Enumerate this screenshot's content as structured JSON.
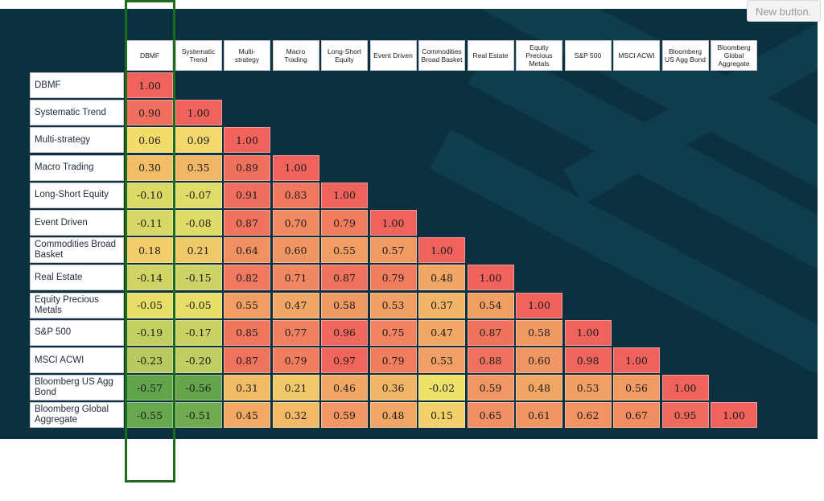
{
  "new_button_label": "New button.",
  "chart_data": {
    "type": "heatmap",
    "columns": [
      "DBMF",
      "Systematic\nTrend",
      "Multi-\nstrategy",
      "Macro\nTrading",
      "Long-Short\nEquity",
      "Event Driven",
      "Commodities\nBroad Basket",
      "Real Estate",
      "Equity\nPrecious\nMetals",
      "S&P 500",
      "MSCI ACWI",
      "Bloomberg\nUS Agg Bond",
      "Bloomberg\nGlobal\nAggregate"
    ],
    "rows": [
      "DBMF",
      "Systematic Trend",
      "Multi-strategy",
      "Macro Trading",
      "Long-Short Equity",
      "Event Driven",
      "Commodities Broad\nBasket",
      "Real Estate",
      "Equity Precious\nMetals",
      "S&P 500",
      "MSCI ACWI",
      "Bloomberg US Agg\nBond",
      "Bloomberg Global\nAggregate"
    ],
    "values": [
      [
        "1.00"
      ],
      [
        "0.90",
        "1.00"
      ],
      [
        "0.06",
        "0.09",
        "1.00"
      ],
      [
        "0.30",
        "0.35",
        "0.89",
        "1.00"
      ],
      [
        "-0.10",
        "-0.07",
        "0.91",
        "0.83",
        "1.00"
      ],
      [
        "-0.11",
        "-0.08",
        "0.87",
        "0.70",
        "0.79",
        "1.00"
      ],
      [
        "0.18",
        "0.21",
        "0.64",
        "0.60",
        "0.55",
        "0.57",
        "1.00"
      ],
      [
        "-0.14",
        "-0.15",
        "0.82",
        "0.71",
        "0.87",
        "0.79",
        "0.48",
        "1.00"
      ],
      [
        "-0.05",
        "-0.05",
        "0.55",
        "0.47",
        "0.58",
        "0.53",
        "0.37",
        "0.54",
        "1.00"
      ],
      [
        "-0.19",
        "-0.17",
        "0.85",
        "0.77",
        "0.96",
        "0.75",
        "0.47",
        "0.87",
        "0.58",
        "1.00"
      ],
      [
        "-0.23",
        "-0.20",
        "0.87",
        "0.79",
        "0.97",
        "0.79",
        "0.53",
        "0.88",
        "0.60",
        "0.98",
        "1.00"
      ],
      [
        "-0.57",
        "-0.56",
        "0.31",
        "0.21",
        "0.46",
        "0.36",
        "-0.02",
        "0.59",
        "0.48",
        "0.53",
        "0.56",
        "1.00"
      ],
      [
        "-0.55",
        "-0.51",
        "0.45",
        "0.32",
        "0.59",
        "0.48",
        "0.15",
        "0.65",
        "0.61",
        "0.62",
        "0.67",
        "0.95",
        "1.00"
      ]
    ],
    "color_scale": {
      "low": "#5aa14a",
      "mid": "#f3e46c",
      "high": "#f0625c"
    },
    "highlighted_column": "DBMF",
    "highlight_color": "#1e6b1e"
  }
}
